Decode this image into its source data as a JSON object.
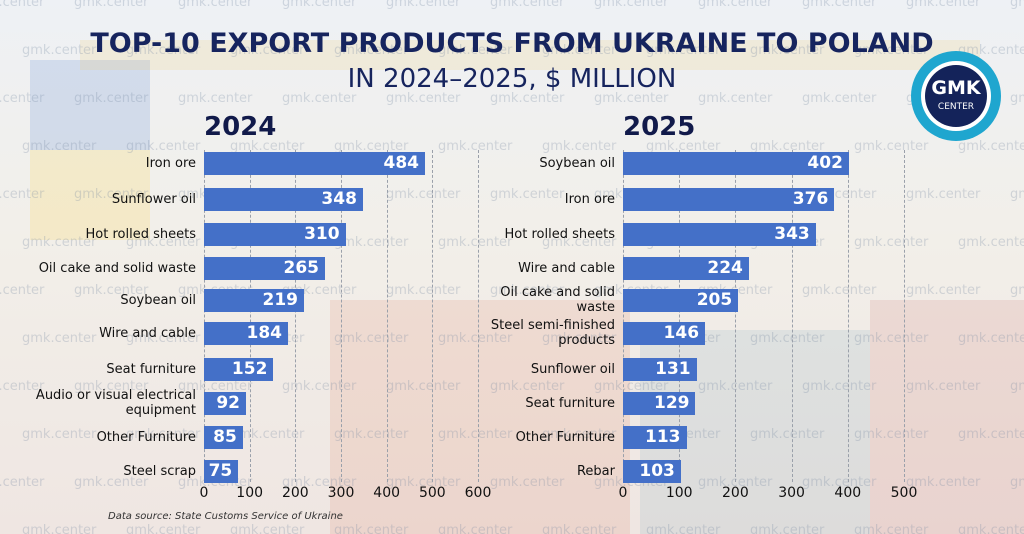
{
  "header": {
    "title": "TOP-10 EXPORT PRODUCTS FROM UKRAINE TO POLAND",
    "subtitle": "IN 2024–2025, $ MILLION"
  },
  "logo": {
    "line1": "GMK",
    "line2": "CENTER"
  },
  "watermark": "gmk.center",
  "source": "Data source: State Customs Service of Ukraine",
  "chart_data": [
    {
      "type": "bar",
      "orientation": "horizontal",
      "heading": "2024",
      "color": "#4470c8",
      "grid": true,
      "categories": [
        "Iron ore",
        "Sunflower oil",
        "Hot rolled sheets",
        "Oil cake and solid waste",
        "Soybean oil",
        "Wire and cable",
        "Seat furniture",
        "Audio or visual electrical equipment",
        "Other Furniture",
        "Steel scrap"
      ],
      "values": [
        484,
        348,
        310,
        265,
        219,
        184,
        152,
        92,
        85,
        75
      ],
      "xlim": [
        0,
        600
      ],
      "xticks": [
        0,
        100,
        200,
        300,
        400,
        500,
        600
      ]
    },
    {
      "type": "bar",
      "orientation": "horizontal",
      "heading": "2025",
      "color": "#4470c8",
      "grid": true,
      "categories": [
        "Soybean oil",
        "Iron ore",
        "Hot rolled sheets",
        "Wire and cable",
        "Oil cake and solid waste",
        "Steel semi-finished products",
        "Sunflower oil",
        "Seat furniture",
        "Other Furniture",
        "Rebar"
      ],
      "values": [
        402,
        376,
        343,
        224,
        205,
        146,
        131,
        129,
        113,
        103
      ],
      "xlim": [
        0,
        500
      ],
      "xticks": [
        0,
        100,
        200,
        300,
        400,
        500
      ]
    }
  ]
}
